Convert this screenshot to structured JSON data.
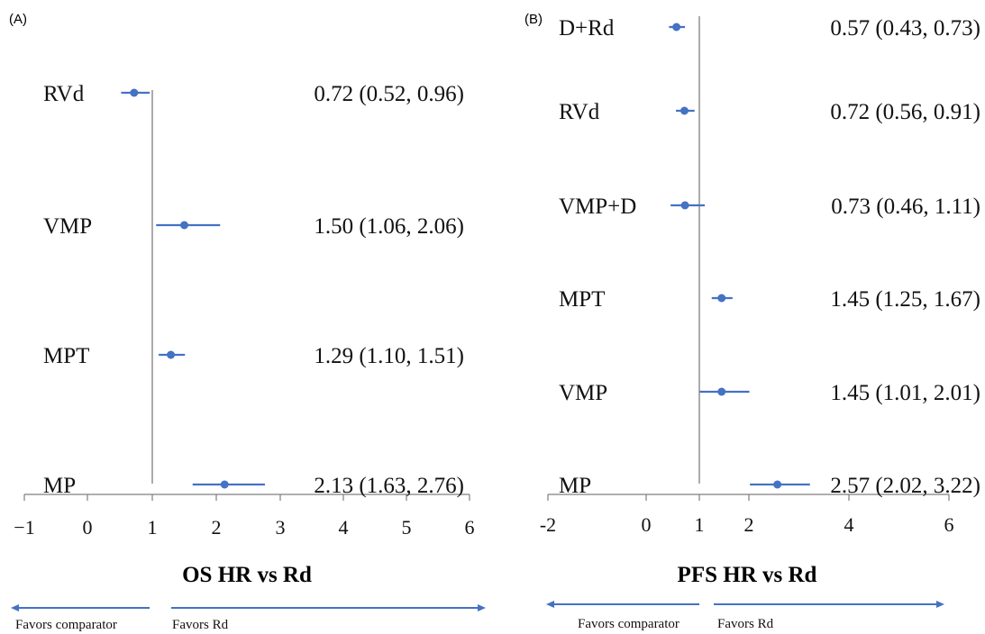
{
  "chart_data": [
    {
      "type": "forest",
      "panel": "(A)",
      "xlabel": "OS HR vs Rd",
      "xlim": [
        -1,
        6
      ],
      "xticks": [
        -1,
        0,
        1,
        2,
        3,
        4,
        5,
        6
      ],
      "xtick_labels": [
        "−1",
        "0",
        "1",
        "2",
        "3",
        "4",
        "5",
        "6"
      ],
      "reference": 1,
      "rows": [
        {
          "label": "RVd",
          "hr": 0.72,
          "lo": 0.52,
          "hi": 0.96,
          "text": "0.72 (0.52, 0.96)"
        },
        {
          "label": "VMP",
          "hr": 1.5,
          "lo": 1.06,
          "hi": 2.06,
          "text": "1.50 (1.06, 2.06)"
        },
        {
          "label": "MPT",
          "hr": 1.29,
          "lo": 1.1,
          "hi": 1.51,
          "text": "1.29 (1.10, 1.51)"
        },
        {
          "label": "MP",
          "hr": 2.13,
          "lo": 1.63,
          "hi": 2.76,
          "text": "2.13 (1.63, 2.76)"
        }
      ],
      "favors_left": "Favors comparator",
      "favors_right": "Favors Rd"
    },
    {
      "type": "forest",
      "panel": "(B)",
      "xlabel": "PFS HR vs Rd",
      "xlim": [
        -2,
        6
      ],
      "xticks": [
        -2,
        0,
        1,
        2,
        4,
        6
      ],
      "xtick_labels": [
        "-2",
        "0",
        "1",
        "2",
        "4",
        "6"
      ],
      "reference": 1,
      "rows": [
        {
          "label": "D+Rd",
          "hr": 0.57,
          "lo": 0.43,
          "hi": 0.73,
          "text": "0.57 (0.43, 0.73)"
        },
        {
          "label": "RVd",
          "hr": 0.72,
          "lo": 0.56,
          "hi": 0.91,
          "text": "0.72 (0.56, 0.91)"
        },
        {
          "label": "VMP+D",
          "hr": 0.73,
          "lo": 0.46,
          "hi": 1.11,
          "text": "0.73 (0.46, 1.11)"
        },
        {
          "label": "MPT",
          "hr": 1.45,
          "lo": 1.25,
          "hi": 1.67,
          "text": "1.45 (1.25, 1.67)"
        },
        {
          "label": "VMP",
          "hr": 1.45,
          "lo": 1.01,
          "hi": 2.01,
          "text": "1.45 (1.01, 2.01)"
        },
        {
          "label": "MP",
          "hr": 2.57,
          "lo": 2.02,
          "hi": 3.22,
          "text": "2.57 (2.02, 3.22)"
        }
      ],
      "favors_left": "Favors comparator",
      "favors_right": "Favors Rd"
    }
  ],
  "colors": {
    "series": "#4472c4",
    "reference_line": "#7f7f7f",
    "axis": "#7f7f7f",
    "text": "#111111"
  }
}
